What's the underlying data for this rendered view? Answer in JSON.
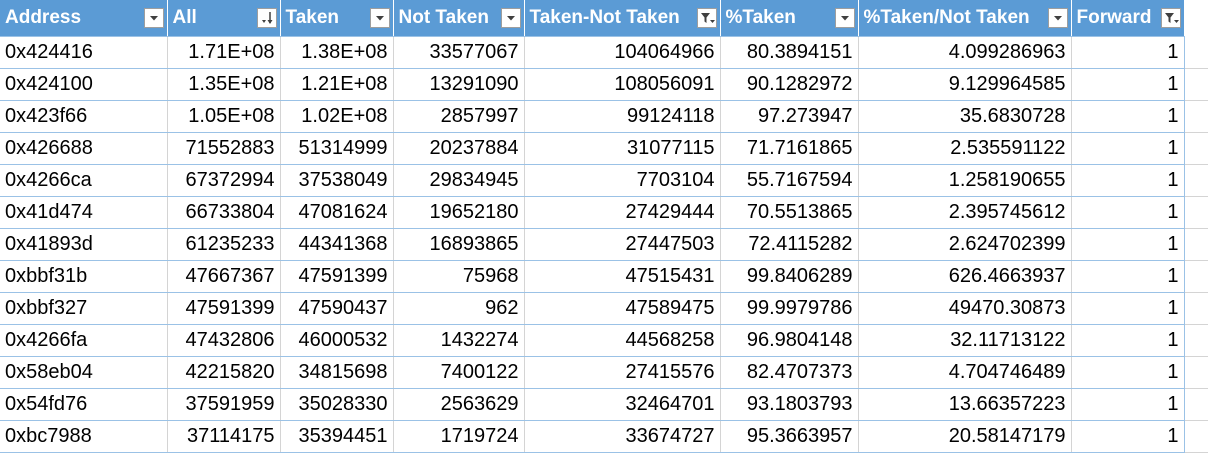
{
  "sheet": {
    "columns": [
      {
        "label": "Address",
        "filter": "dropdown"
      },
      {
        "label": "All",
        "filter": "sort-desc"
      },
      {
        "label": "Taken",
        "filter": "dropdown"
      },
      {
        "label": "Not Taken",
        "filter": "dropdown"
      },
      {
        "label": "Taken-Not Taken",
        "filter": "filtered"
      },
      {
        "label": "%Taken",
        "filter": "dropdown"
      },
      {
        "label": "%Taken/Not Taken",
        "filter": "dropdown"
      },
      {
        "label": "Forward",
        "filter": "filtered"
      }
    ],
    "rows": [
      [
        "0x424416",
        "1.71E+08",
        "1.38E+08",
        "33577067",
        "104064966",
        "80.3894151",
        "4.099286963",
        "1"
      ],
      [
        "0x424100",
        "1.35E+08",
        "1.21E+08",
        "13291090",
        "108056091",
        "90.1282972",
        "9.129964585",
        "1"
      ],
      [
        "0x423f66",
        "1.05E+08",
        "1.02E+08",
        "2857997",
        "99124118",
        "97.273947",
        "35.6830728",
        "1"
      ],
      [
        "0x426688",
        "71552883",
        "51314999",
        "20237884",
        "31077115",
        "71.7161865",
        "2.535591122",
        "1"
      ],
      [
        "0x4266ca",
        "67372994",
        "37538049",
        "29834945",
        "7703104",
        "55.7167594",
        "1.258190655",
        "1"
      ],
      [
        "0x41d474",
        "66733804",
        "47081624",
        "19652180",
        "27429444",
        "70.5513865",
        "2.395745612",
        "1"
      ],
      [
        "0x41893d",
        "61235233",
        "44341368",
        "16893865",
        "27447503",
        "72.4115282",
        "2.624702399",
        "1"
      ],
      [
        "0xbbf31b",
        "47667367",
        "47591399",
        "75968",
        "47515431",
        "99.8406289",
        "626.4663937",
        "1"
      ],
      [
        "0xbbf327",
        "47591399",
        "47590437",
        "962",
        "47589475",
        "99.9979786",
        "49470.30873",
        "1"
      ],
      [
        "0x4266fa",
        "47432806",
        "46000532",
        "1432274",
        "44568258",
        "96.9804148",
        "32.11713122",
        "1"
      ],
      [
        "0x58eb04",
        "42215820",
        "34815698",
        "7400122",
        "27415576",
        "82.4707373",
        "4.704746489",
        "1"
      ],
      [
        "0x54fd76",
        "37591959",
        "35028330",
        "2563629",
        "32464701",
        "93.1803793",
        "13.66357223",
        "1"
      ],
      [
        "0xbc7988",
        "37114175",
        "35394451",
        "1719724",
        "33674727",
        "95.3663957",
        "20.58147179",
        "1"
      ]
    ]
  },
  "colors": {
    "header_bg": "#5b9bd5",
    "header_text": "#ffffff",
    "row_border": "#9bc2e6",
    "grid_line": "#d4d4d4"
  }
}
